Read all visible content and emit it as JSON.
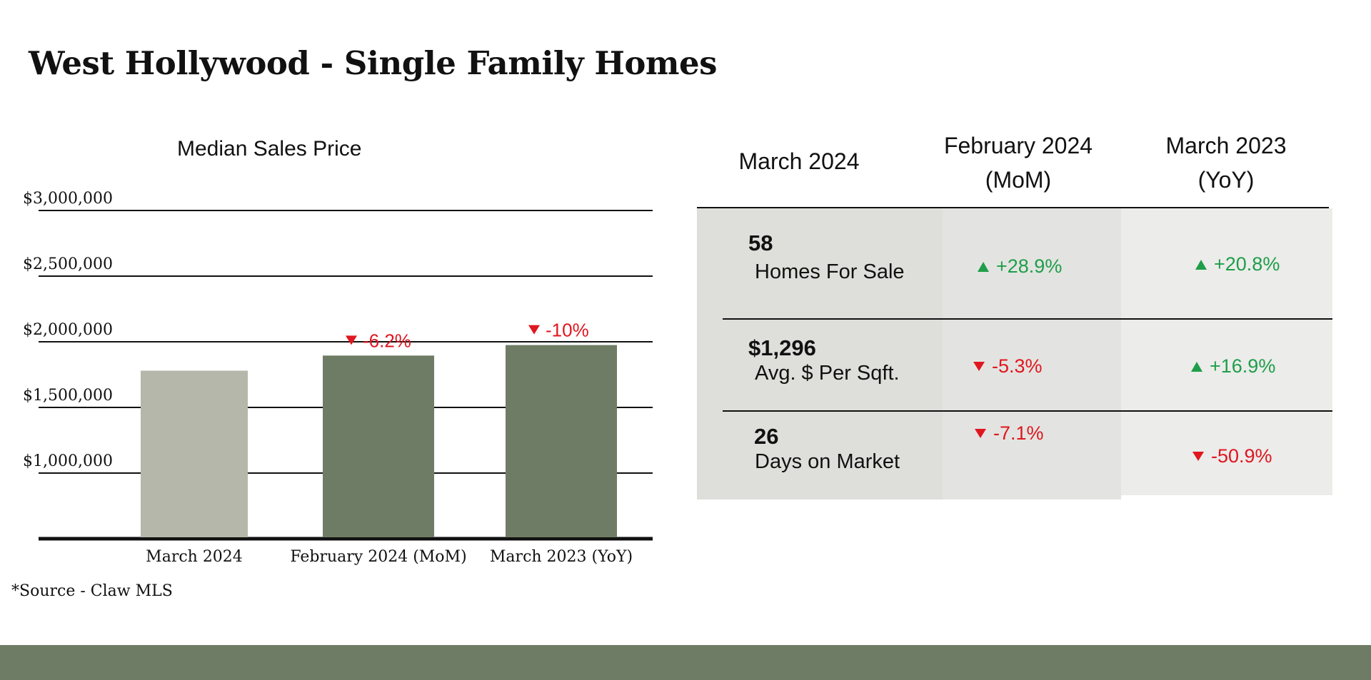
{
  "page": {
    "title": "West Hollywood - Single Family Homes",
    "source": "*Source - Claw MLS"
  },
  "colors": {
    "bar_current": "#b5b7aa",
    "bar_compare": "#6f7c65",
    "up": "#1e9e4a",
    "down": "#e0161f",
    "footer": "#6f7c65"
  },
  "chart_data": {
    "type": "bar",
    "title": "Median Sales Price",
    "categories": [
      "March 2024",
      "February 2024 (MoM)",
      "March 2023 (YoY)"
    ],
    "values": [
      1780000,
      1895000,
      1975000
    ],
    "y_ticks": [
      "$1,000,000",
      "$1,500,000",
      "$2,000,000",
      "$2,500,000",
      "$3,000,000"
    ],
    "ylim": [
      500000,
      3000000
    ],
    "grid": true,
    "annotations": [
      {
        "category": "February 2024 (MoM)",
        "text": "-6.2%",
        "direction": "down"
      },
      {
        "category": "March 2023 (YoY)",
        "text": "-10%",
        "direction": "down"
      }
    ]
  },
  "table": {
    "headers": [
      {
        "line1": "March 2024",
        "line2": ""
      },
      {
        "line1": "February 2024",
        "line2": "(MoM)"
      },
      {
        "line1": "March 2023",
        "line2": "(YoY)"
      }
    ],
    "rows": [
      {
        "value": "58",
        "label": "Homes For Sale",
        "mom": {
          "text": "+28.9%",
          "direction": "up"
        },
        "yoy": {
          "text": "+20.8%",
          "direction": "up"
        }
      },
      {
        "value": "$1,296",
        "label": "Avg. $ Per Sqft.",
        "mom": {
          "text": "-5.3%",
          "direction": "down"
        },
        "yoy": {
          "text": "+16.9%",
          "direction": "up"
        }
      },
      {
        "value": "26",
        "label": "Days on Market",
        "mom": {
          "text": "-7.1%",
          "direction": "down"
        },
        "yoy": {
          "text": "-50.9%",
          "direction": "down"
        }
      }
    ]
  }
}
